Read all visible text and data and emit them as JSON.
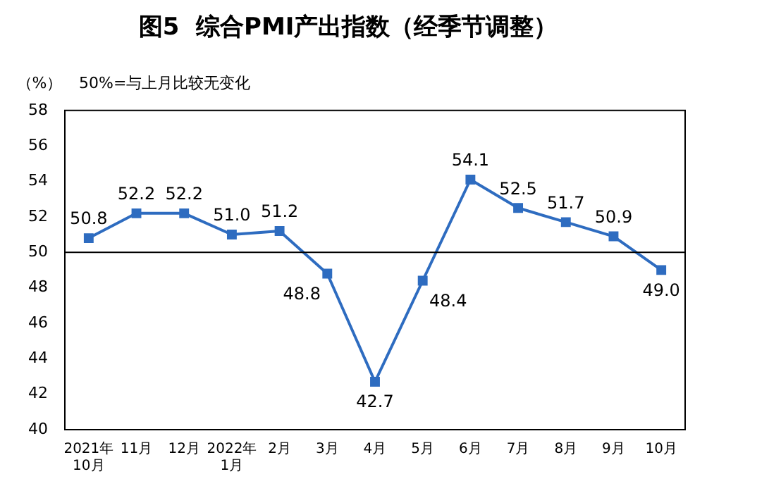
{
  "chart_data": {
    "type": "line",
    "title": "图5  综合PMI产出指数（经季节调整）",
    "ylabel": "（%）",
    "annotations": [
      "50%=与上月比较无变化"
    ],
    "categories": [
      "2021年\n10月",
      "11月",
      "12月",
      "2022年\n1月",
      "2月",
      "3月",
      "4月",
      "5月",
      "6月",
      "7月",
      "8月",
      "9月",
      "10月"
    ],
    "series": [
      {
        "color": "#2e6cc0",
        "values": [
          50.8,
          52.2,
          52.2,
          51.0,
          51.2,
          48.8,
          42.7,
          48.4,
          54.1,
          52.5,
          51.7,
          50.9,
          49.0
        ],
        "value_labels": [
          "50.8",
          "52.2",
          "52.2",
          "51.0",
          "51.2",
          "48.8",
          "42.7",
          "48.4",
          "54.1",
          "52.5",
          "51.7",
          "50.9",
          "49.0"
        ]
      }
    ],
    "ylim": [
      40,
      58
    ],
    "yticks": [
      40,
      42,
      44,
      46,
      48,
      50,
      52,
      54,
      56,
      58
    ],
    "ref_lines": [
      {
        "axis": "y",
        "value": 50,
        "color": "#000000"
      }
    ],
    "marker": "square",
    "line_style": "solid",
    "grid": false,
    "legend": false
  }
}
